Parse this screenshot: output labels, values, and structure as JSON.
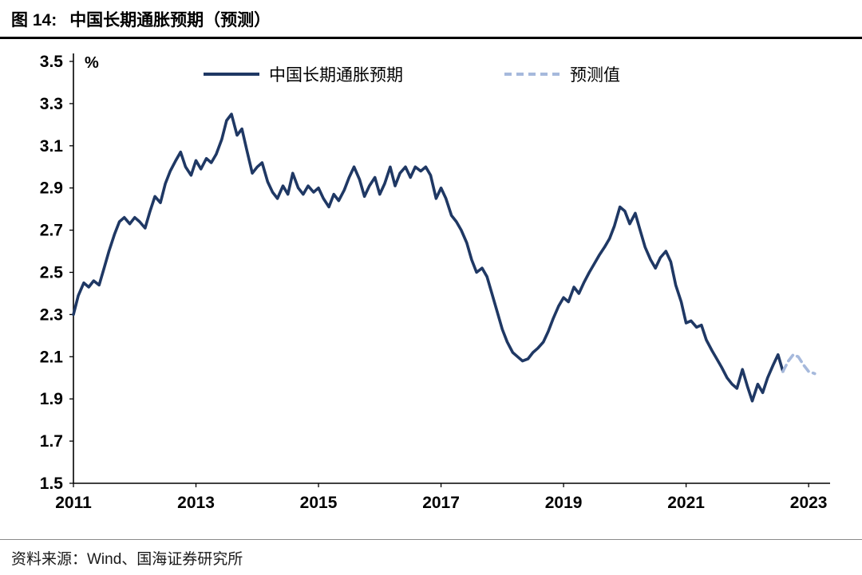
{
  "header": {
    "figure_label": "图 14:",
    "title": "中国长期通胀预期（预测）"
  },
  "chart_data": {
    "type": "line",
    "title": "中国长期通胀预期（预测）",
    "xlabel": "",
    "ylabel": "%",
    "xlim": [
      2011,
      2023.35
    ],
    "ylim": [
      1.5,
      3.5
    ],
    "yticks": [
      1.5,
      1.7,
      1.9,
      2.1,
      2.3,
      2.5,
      2.7,
      2.9,
      3.1,
      3.3,
      3.5
    ],
    "xticks": [
      2011,
      2013,
      2015,
      2017,
      2019,
      2021,
      2023
    ],
    "grid": false,
    "legend_position": "top",
    "legend": [
      {
        "label": "中国长期通胀预期",
        "color": "#1f3864",
        "dash": false
      },
      {
        "label": "预测值",
        "color": "#a6b9dc",
        "dash": true
      }
    ],
    "series": [
      {
        "name": "中国长期通胀预期",
        "color": "#1f3864",
        "dash": false,
        "points": [
          [
            2011.0,
            2.3
          ],
          [
            2011.08,
            2.39
          ],
          [
            2011.17,
            2.45
          ],
          [
            2011.25,
            2.43
          ],
          [
            2011.33,
            2.46
          ],
          [
            2011.42,
            2.44
          ],
          [
            2011.5,
            2.52
          ],
          [
            2011.58,
            2.6
          ],
          [
            2011.67,
            2.68
          ],
          [
            2011.75,
            2.74
          ],
          [
            2011.83,
            2.76
          ],
          [
            2011.92,
            2.73
          ],
          [
            2012.0,
            2.76
          ],
          [
            2012.08,
            2.74
          ],
          [
            2012.17,
            2.71
          ],
          [
            2012.25,
            2.79
          ],
          [
            2012.33,
            2.86
          ],
          [
            2012.42,
            2.83
          ],
          [
            2012.5,
            2.92
          ],
          [
            2012.58,
            2.98
          ],
          [
            2012.67,
            3.03
          ],
          [
            2012.75,
            3.07
          ],
          [
            2012.83,
            3.0
          ],
          [
            2012.92,
            2.96
          ],
          [
            2013.0,
            3.03
          ],
          [
            2013.08,
            2.99
          ],
          [
            2013.17,
            3.04
          ],
          [
            2013.25,
            3.02
          ],
          [
            2013.33,
            3.06
          ],
          [
            2013.42,
            3.13
          ],
          [
            2013.5,
            3.22
          ],
          [
            2013.58,
            3.25
          ],
          [
            2013.67,
            3.15
          ],
          [
            2013.75,
            3.18
          ],
          [
            2013.83,
            3.08
          ],
          [
            2013.92,
            2.97
          ],
          [
            2014.0,
            3.0
          ],
          [
            2014.08,
            3.02
          ],
          [
            2014.17,
            2.93
          ],
          [
            2014.25,
            2.88
          ],
          [
            2014.33,
            2.85
          ],
          [
            2014.42,
            2.91
          ],
          [
            2014.5,
            2.87
          ],
          [
            2014.58,
            2.97
          ],
          [
            2014.67,
            2.9
          ],
          [
            2014.75,
            2.87
          ],
          [
            2014.83,
            2.91
          ],
          [
            2014.92,
            2.88
          ],
          [
            2015.0,
            2.9
          ],
          [
            2015.08,
            2.85
          ],
          [
            2015.17,
            2.81
          ],
          [
            2015.25,
            2.87
          ],
          [
            2015.33,
            2.84
          ],
          [
            2015.42,
            2.89
          ],
          [
            2015.5,
            2.95
          ],
          [
            2015.58,
            3.0
          ],
          [
            2015.67,
            2.94
          ],
          [
            2015.75,
            2.86
          ],
          [
            2015.83,
            2.91
          ],
          [
            2015.92,
            2.95
          ],
          [
            2016.0,
            2.87
          ],
          [
            2016.08,
            2.92
          ],
          [
            2016.17,
            3.0
          ],
          [
            2016.25,
            2.91
          ],
          [
            2016.33,
            2.97
          ],
          [
            2016.42,
            3.0
          ],
          [
            2016.5,
            2.95
          ],
          [
            2016.58,
            3.0
          ],
          [
            2016.67,
            2.98
          ],
          [
            2016.75,
            3.0
          ],
          [
            2016.83,
            2.96
          ],
          [
            2016.92,
            2.85
          ],
          [
            2017.0,
            2.9
          ],
          [
            2017.08,
            2.85
          ],
          [
            2017.17,
            2.77
          ],
          [
            2017.25,
            2.74
          ],
          [
            2017.33,
            2.7
          ],
          [
            2017.42,
            2.64
          ],
          [
            2017.5,
            2.56
          ],
          [
            2017.58,
            2.5
          ],
          [
            2017.67,
            2.52
          ],
          [
            2017.75,
            2.48
          ],
          [
            2017.83,
            2.4
          ],
          [
            2017.92,
            2.31
          ],
          [
            2018.0,
            2.23
          ],
          [
            2018.08,
            2.17
          ],
          [
            2018.17,
            2.12
          ],
          [
            2018.25,
            2.1
          ],
          [
            2018.33,
            2.08
          ],
          [
            2018.42,
            2.09
          ],
          [
            2018.5,
            2.12
          ],
          [
            2018.58,
            2.14
          ],
          [
            2018.67,
            2.17
          ],
          [
            2018.75,
            2.22
          ],
          [
            2018.83,
            2.28
          ],
          [
            2018.92,
            2.34
          ],
          [
            2019.0,
            2.38
          ],
          [
            2019.08,
            2.36
          ],
          [
            2019.17,
            2.43
          ],
          [
            2019.25,
            2.4
          ],
          [
            2019.33,
            2.45
          ],
          [
            2019.42,
            2.5
          ],
          [
            2019.5,
            2.54
          ],
          [
            2019.58,
            2.58
          ],
          [
            2019.67,
            2.62
          ],
          [
            2019.75,
            2.66
          ],
          [
            2019.83,
            2.72
          ],
          [
            2019.92,
            2.81
          ],
          [
            2020.0,
            2.79
          ],
          [
            2020.08,
            2.73
          ],
          [
            2020.17,
            2.78
          ],
          [
            2020.25,
            2.7
          ],
          [
            2020.33,
            2.62
          ],
          [
            2020.42,
            2.56
          ],
          [
            2020.5,
            2.52
          ],
          [
            2020.58,
            2.57
          ],
          [
            2020.67,
            2.6
          ],
          [
            2020.75,
            2.55
          ],
          [
            2020.83,
            2.44
          ],
          [
            2020.92,
            2.36
          ],
          [
            2021.0,
            2.26
          ],
          [
            2021.08,
            2.27
          ],
          [
            2021.17,
            2.24
          ],
          [
            2021.25,
            2.25
          ],
          [
            2021.33,
            2.18
          ],
          [
            2021.42,
            2.13
          ],
          [
            2021.5,
            2.09
          ],
          [
            2021.58,
            2.05
          ],
          [
            2021.67,
            2.0
          ],
          [
            2021.75,
            1.97
          ],
          [
            2021.83,
            1.95
          ],
          [
            2021.92,
            2.04
          ],
          [
            2022.0,
            1.96
          ],
          [
            2022.08,
            1.89
          ],
          [
            2022.17,
            1.97
          ],
          [
            2022.25,
            1.93
          ],
          [
            2022.33,
            2.0
          ],
          [
            2022.42,
            2.06
          ],
          [
            2022.5,
            2.11
          ],
          [
            2022.58,
            2.03
          ]
        ]
      },
      {
        "name": "预测值",
        "color": "#a6b9dc",
        "dash": true,
        "points": [
          [
            2022.58,
            2.03
          ],
          [
            2022.67,
            2.08
          ],
          [
            2022.75,
            2.11
          ],
          [
            2022.83,
            2.1
          ],
          [
            2022.92,
            2.06
          ],
          [
            2023.0,
            2.03
          ],
          [
            2023.1,
            2.02
          ]
        ]
      }
    ]
  },
  "footer": {
    "source": "资料来源：Wind、国海证券研究所"
  }
}
